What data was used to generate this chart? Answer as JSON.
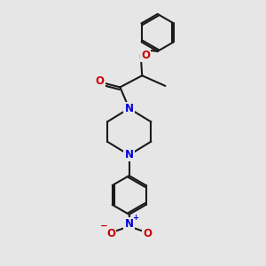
{
  "bg_color": "#e6e6e6",
  "bond_color": "#1a1a1a",
  "N_color": "#0000dd",
  "O_color": "#cc0000",
  "font_size": 8.5,
  "line_width": 1.5,
  "fig_w": 3.0,
  "fig_h": 3.0,
  "dpi": 100,
  "xlim": [
    0,
    10
  ],
  "ylim": [
    0,
    10
  ]
}
